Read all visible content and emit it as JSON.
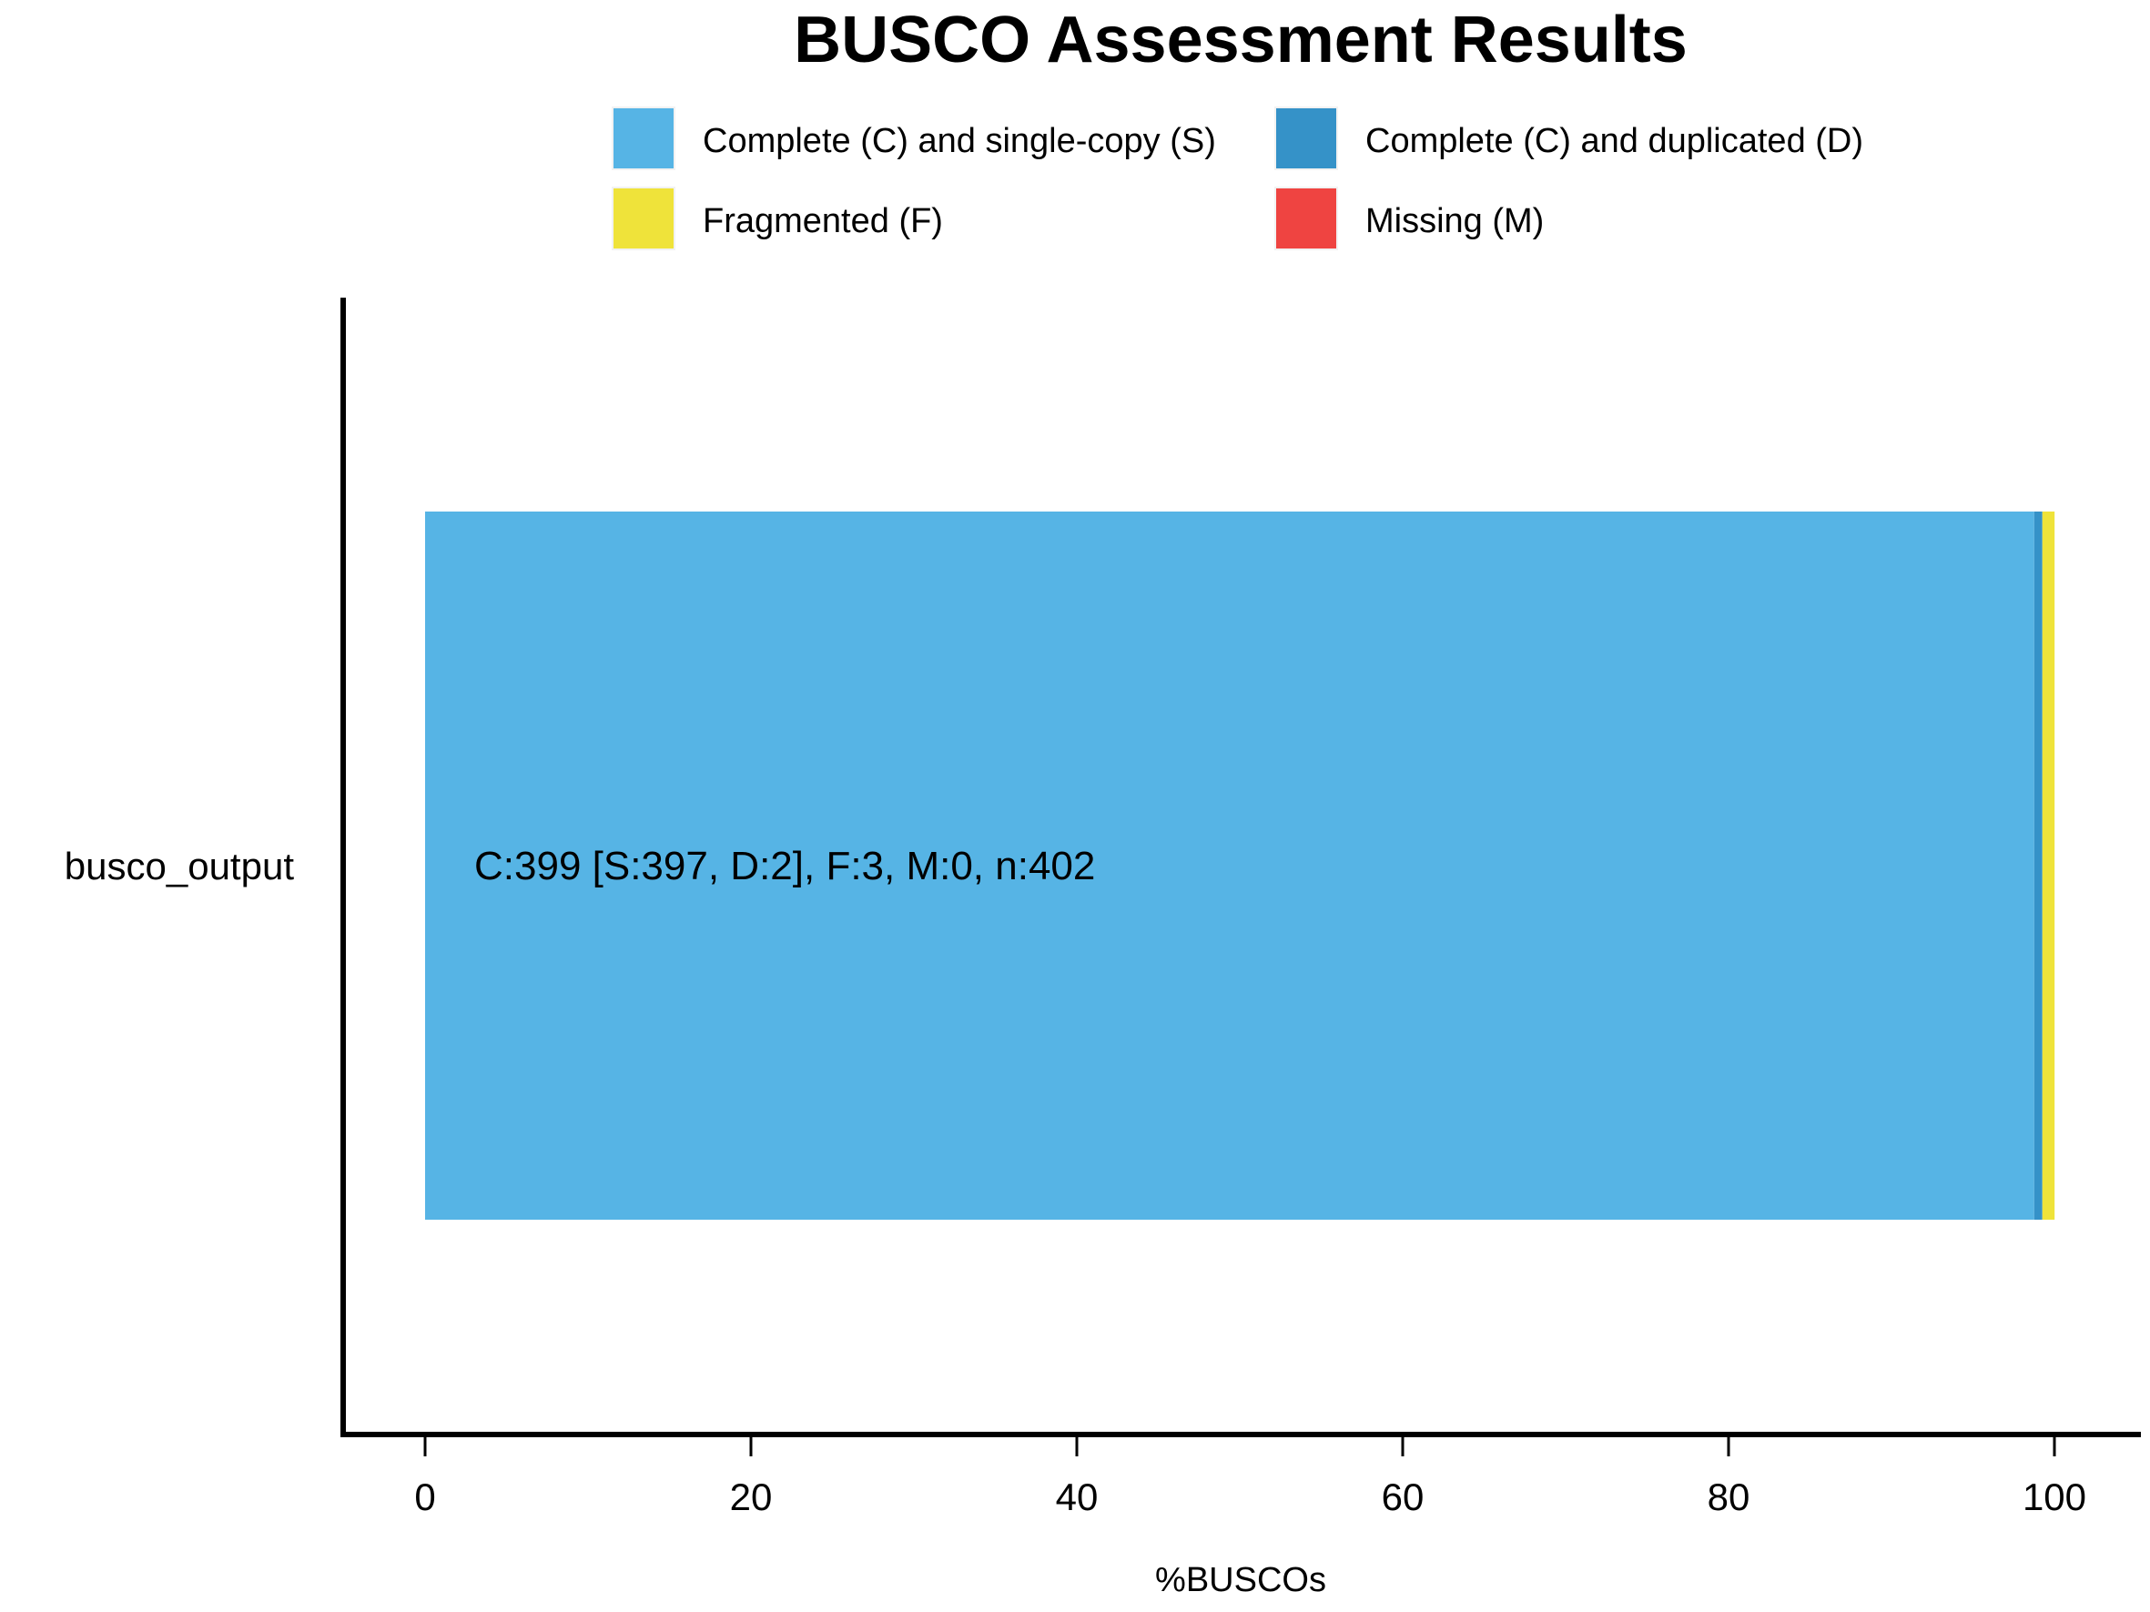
{
  "chart_data": {
    "type": "bar",
    "orientation": "horizontal",
    "stacked": true,
    "title": "BUSCO Assessment Results",
    "xlabel": "%BUSCOs",
    "ylabel": "",
    "xlim": [
      0,
      100
    ],
    "x_ticks": [
      "0",
      "20",
      "40",
      "60",
      "80",
      "100"
    ],
    "categories": [
      "busco_output"
    ],
    "legend_placement": "top",
    "grid": false,
    "series": [
      {
        "name": "Complete (C) and single-copy (S)",
        "color": "#56B4E5",
        "values": [
          98.76
        ]
      },
      {
        "name": "Complete (C) and duplicated (D)",
        "color": "#3592C8",
        "values": [
          0.5
        ]
      },
      {
        "name": "Fragmented (F)",
        "color": "#EFE33A",
        "values": [
          0.75
        ]
      },
      {
        "name": "Missing (M)",
        "color": "#EF4441",
        "values": [
          0.0
        ]
      }
    ],
    "bar_labels": [
      "C:399 [S:397, D:2], F:3, M:0, n:402"
    ]
  }
}
